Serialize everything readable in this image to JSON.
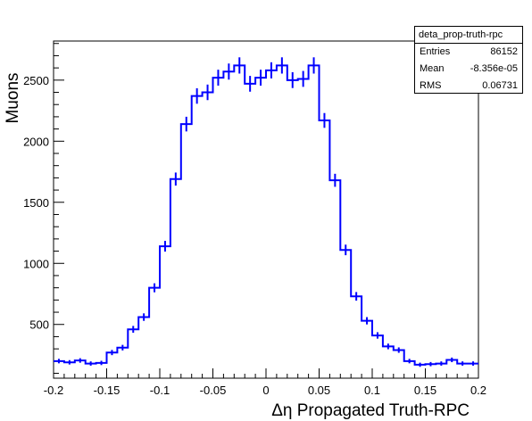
{
  "chart_data": {
    "type": "histogram",
    "ylabel": "Muons",
    "xlabel": "Δη Propagated Truth-RPC",
    "xlim": [
      -0.2,
      0.2
    ],
    "ylim": [
      60,
      2820
    ],
    "x_ticks": [
      "-0.2",
      "-0.15",
      "-0.1",
      "-0.05",
      "0",
      "0.05",
      "0.1",
      "0.15",
      "0.2"
    ],
    "x_tick_values": [
      -0.2,
      -0.15,
      -0.1,
      -0.05,
      0,
      0.05,
      0.1,
      0.15,
      0.2
    ],
    "y_ticks": [
      "500",
      "1000",
      "1500",
      "2000",
      "2500"
    ],
    "y_tick_values": [
      500,
      1000,
      1500,
      2000,
      2500
    ],
    "bin_width": 0.01,
    "bin_edges_start": -0.2,
    "values": [
      200,
      190,
      205,
      180,
      185,
      270,
      310,
      460,
      560,
      800,
      1140,
      1690,
      2140,
      2370,
      2400,
      2520,
      2570,
      2620,
      2470,
      2520,
      2580,
      2620,
      2500,
      2510,
      2620,
      2170,
      1680,
      1110,
      730,
      530,
      410,
      320,
      290,
      200,
      170,
      175,
      180,
      210,
      180,
      180
    ],
    "line_color": "#0000ff",
    "grid": false,
    "stats": {
      "title": "deta_prop-truth-rpc",
      "entries_label": "Entries",
      "entries_value": "86152",
      "mean_label": "Mean",
      "mean_value": "-8.356e-05",
      "rms_label": "RMS",
      "rms_value": "0.06731"
    }
  }
}
